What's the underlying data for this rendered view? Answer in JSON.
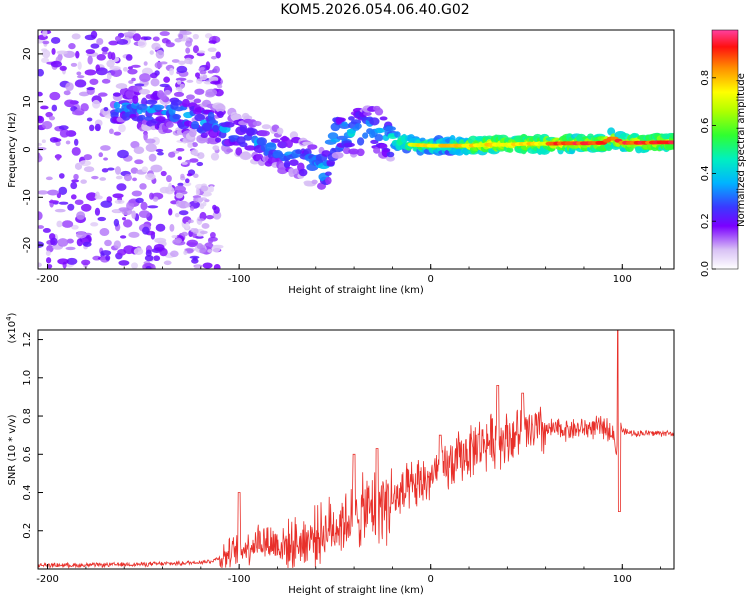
{
  "title": "KOM5.2026.054.06.40.G02",
  "chart_data": [
    {
      "type": "heatmap",
      "xlabel": "Height of straight line (km)",
      "ylabel": "Frequency (Hz)",
      "xlim": [
        -205,
        127
      ],
      "ylim": [
        -25,
        25
      ],
      "x_ticks": [
        -200,
        -100,
        0,
        100
      ],
      "x_tick_labels": [
        "-200",
        "-100",
        "0",
        "100"
      ],
      "y_ticks": [
        -20,
        -10,
        0,
        10,
        20
      ],
      "y_tick_labels": [
        "-20",
        "-10",
        "0",
        "10",
        "20"
      ],
      "colorbar": {
        "label": "Normalized spectral amplitude",
        "range": [
          0,
          1
        ],
        "ticks": [
          0.0,
          0.2,
          0.4,
          0.6,
          0.8
        ],
        "tick_labels": [
          "0.0",
          "0.2",
          "0.4",
          "0.6",
          "0.8"
        ]
      },
      "ridge": {
        "x": [
          -160,
          -150,
          -140,
          -130,
          -120,
          -110,
          -100,
          -90,
          -80,
          -70,
          -60,
          -55,
          -50,
          -40,
          -35,
          -30,
          -25,
          -20,
          -10,
          0,
          10,
          20,
          30,
          40,
          50,
          60,
          70,
          80,
          90,
          95,
          100,
          110,
          120,
          127
        ],
        "y": [
          9,
          8.5,
          8,
          7.5,
          6,
          4.5,
          3,
          1.5,
          0,
          -1.5,
          -3.5,
          -4.5,
          3,
          3.5,
          4,
          4.5,
          3.5,
          2,
          1,
          0.8,
          0.8,
          0.8,
          1,
          1,
          1.2,
          1.2,
          1.3,
          1.3,
          1.4,
          2.5,
          1.4,
          1.4,
          1.5,
          1.5
        ]
      },
      "grid": false
    },
    {
      "type": "line",
      "xlabel": "Height of straight line (km)",
      "ylabel": "SNR (10 * v/v)",
      "y_multiplier_label": "(x10",
      "y_multiplier_exp": "4",
      "y_multiplier_close": ")",
      "xlim": [
        -205,
        127
      ],
      "ylim": [
        0,
        1.25
      ],
      "x_ticks": [
        -200,
        -100,
        0,
        100
      ],
      "x_tick_labels": [
        "-200",
        "-100",
        "0",
        "100"
      ],
      "y_ticks": [
        0.2,
        0.4,
        0.6,
        0.8,
        1.0,
        1.2
      ],
      "y_tick_labels": [
        "0.2",
        "0.4",
        "0.6",
        "0.8",
        "1.0",
        "1.2"
      ],
      "series": [
        {
          "color": "#e8302a",
          "envelope_x": [
            -205,
            -180,
            -150,
            -130,
            -115,
            -105,
            -95,
            -90,
            -85,
            -75,
            -65,
            -55,
            -45,
            -35,
            -25,
            -15,
            -5,
            5,
            15,
            25,
            35,
            45,
            55,
            65,
            75,
            85,
            90,
            95,
            97,
            98,
            100,
            105,
            115,
            127
          ],
          "envelope_y": [
            0.02,
            0.02,
            0.025,
            0.03,
            0.04,
            0.08,
            0.12,
            0.15,
            0.14,
            0.12,
            0.15,
            0.2,
            0.25,
            0.3,
            0.34,
            0.38,
            0.45,
            0.5,
            0.58,
            0.65,
            0.68,
            0.7,
            0.72,
            0.73,
            0.73,
            0.74,
            0.74,
            0.72,
            0.6,
            0.85,
            0.72,
            0.71,
            0.71,
            0.71
          ],
          "peaks": [
            {
              "x": -100,
              "y": 0.4
            },
            {
              "x": -40,
              "y": 0.6
            },
            {
              "x": -28,
              "y": 0.63
            },
            {
              "x": 5,
              "y": 0.7
            },
            {
              "x": 35,
              "y": 0.96
            },
            {
              "x": 48,
              "y": 0.92
            },
            {
              "x": 98,
              "y": 1.25
            },
            {
              "x": 98.5,
              "y": 0.3
            }
          ]
        }
      ],
      "grid": false
    }
  ]
}
